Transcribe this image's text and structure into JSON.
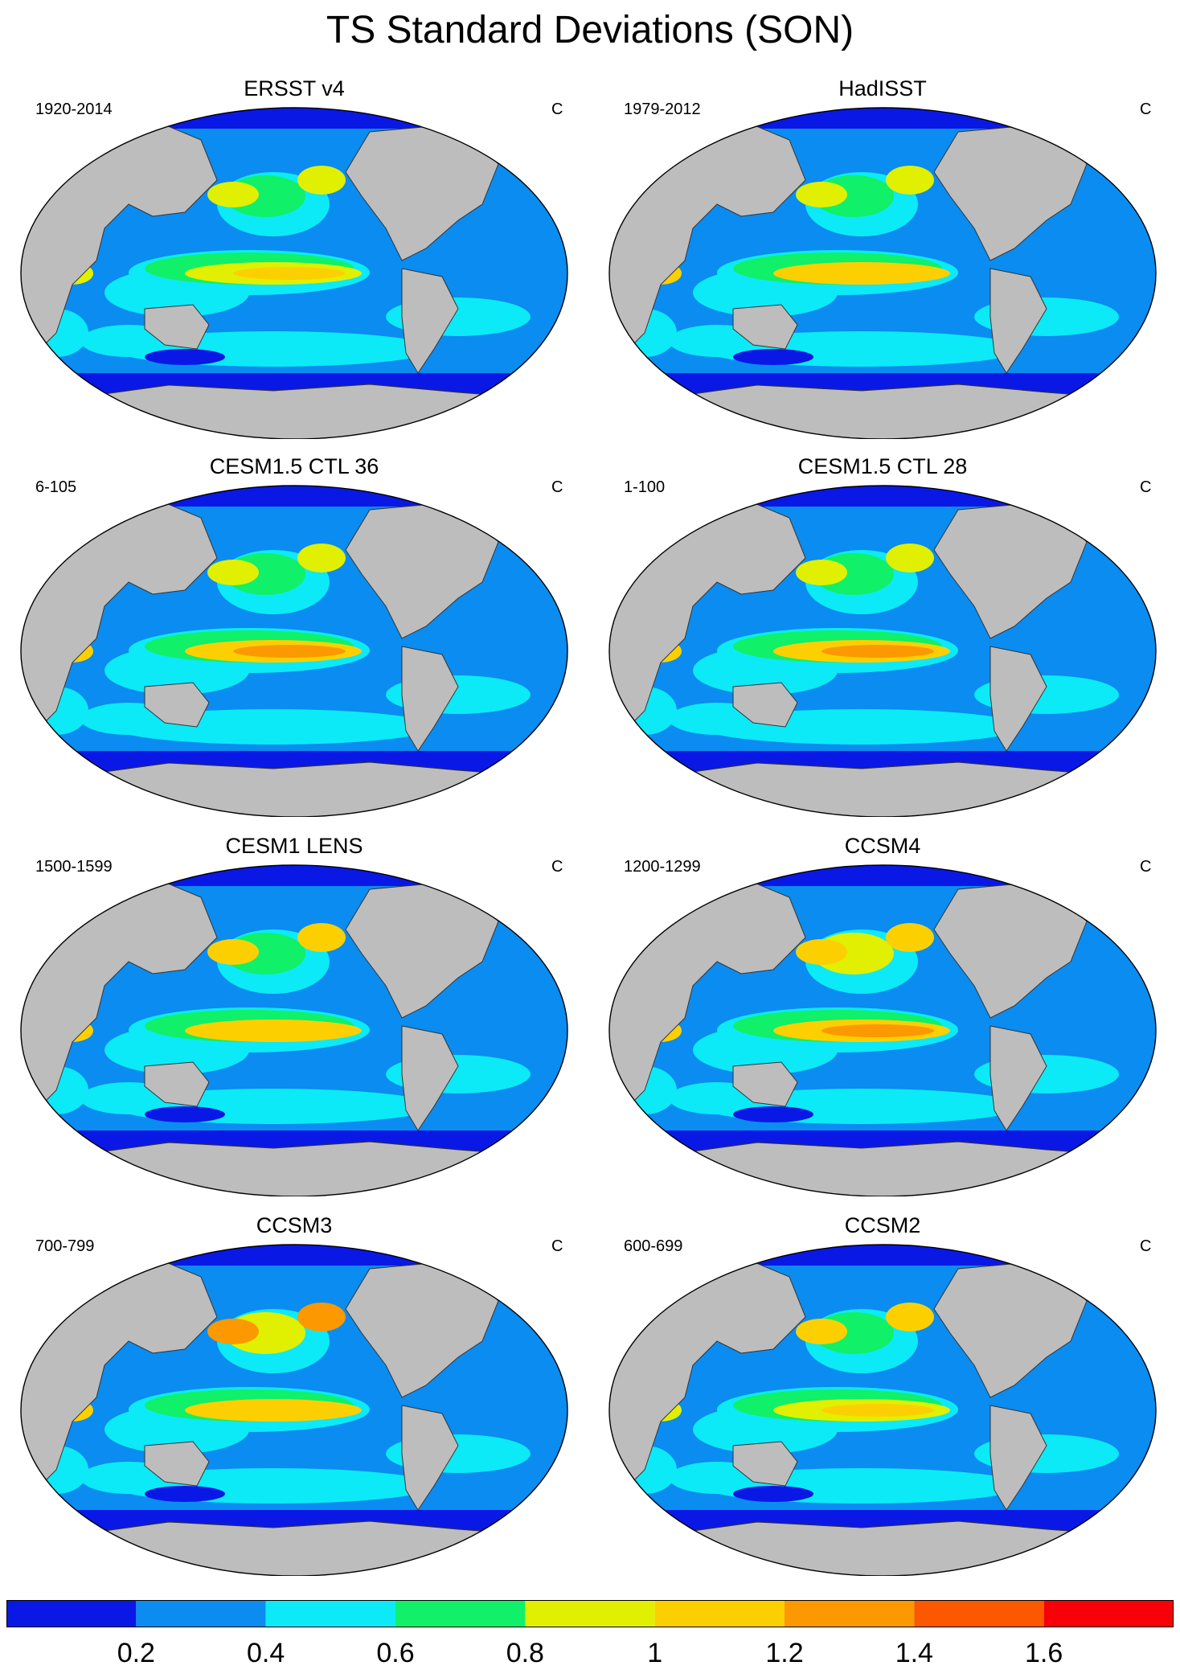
{
  "title": "TS Standard Deviations (SON)",
  "panels": [
    {
      "title": "ERSST v4",
      "period": "1920-2014",
      "units": "C",
      "cold": 0.6,
      "nino": 1.0,
      "npac": 0.9
    },
    {
      "title": "HadISST",
      "period": "1979-2012",
      "units": "C",
      "cold": 0.9,
      "nino": 1.2,
      "npac": 0.9
    },
    {
      "title": "CESM1.5 CTL 36",
      "period": "6-105",
      "units": "C",
      "cold": 0.5,
      "nino": 1.3,
      "npac": 0.8
    },
    {
      "title": "CESM1.5 CTL 28",
      "period": "1-100",
      "units": "C",
      "cold": 0.5,
      "nino": 1.3,
      "npac": 0.8
    },
    {
      "title": "CESM1 LENS",
      "period": "1500-1599",
      "units": "C",
      "cold": 0.6,
      "nino": 1.2,
      "npac": 1.0
    },
    {
      "title": "CCSM4",
      "period": "1200-1299",
      "units": "C",
      "cold": 0.6,
      "nino": 1.4,
      "npac": 1.2
    },
    {
      "title": "CCSM3",
      "period": "700-799",
      "units": "C",
      "cold": 0.7,
      "nino": 1.2,
      "npac": 1.4
    },
    {
      "title": "CCSM2",
      "period": "600-699",
      "units": "C",
      "cold": 0.6,
      "nino": 1.1,
      "npac": 1.0
    }
  ],
  "colorbar": {
    "colors": [
      "#0a18e6",
      "#0a8cf0",
      "#0ceaf8",
      "#10f068",
      "#e0f000",
      "#fcd000",
      "#fc9800",
      "#fc5800",
      "#f80008"
    ],
    "labels": [
      "0.2",
      "0.4",
      "0.6",
      "0.8",
      "1",
      "1.2",
      "1.4",
      "1.6"
    ]
  },
  "land_color": "#bdbdbd"
}
